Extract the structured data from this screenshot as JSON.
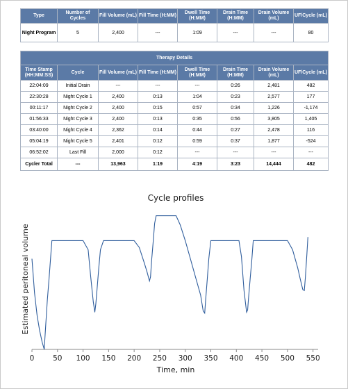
{
  "summary": {
    "headers": [
      "Type",
      "Number of Cycles",
      "Fill Volume (mL)",
      "Fill Time (H:MM)",
      "Dwell Time (H:MM)",
      "Drain Time (H:MM)",
      "Drain Volume (mL)",
      "UF/Cycle (mL)"
    ],
    "row": [
      "Night Program",
      "5",
      "2,400",
      "---",
      "1:09",
      "---",
      "---",
      "80"
    ]
  },
  "therapy": {
    "title": "Therapy Details",
    "headers": [
      "Time Stamp (HH:MM:SS)",
      "Cycle",
      "Fill Volume (mL)",
      "Fill Time (H:MM)",
      "Dwell Time (H:MM)",
      "Drain Time (H:MM)",
      "Drain Volume (mL)",
      "UF/Cycle (mL)"
    ],
    "rows": [
      [
        "22:04:09",
        "Initial Drain",
        "---",
        "---",
        "---",
        "0:26",
        "2,481",
        "482"
      ],
      [
        "22:30:28",
        "Night Cycle 1",
        "2,400",
        "0:13",
        "1:04",
        "0:23",
        "2,577",
        "177"
      ],
      [
        "00:11:17",
        "Night Cycle 2",
        "2,400",
        "0:15",
        "0:57",
        "0:34",
        "1,226",
        "-1,174"
      ],
      [
        "01:56:33",
        "Night Cycle 3",
        "2,400",
        "0:13",
        "0:35",
        "0:56",
        "3,805",
        "1,405"
      ],
      [
        "03:40:00",
        "Night Cycle 4",
        "2,362",
        "0:14",
        "0:44",
        "0:27",
        "2,478",
        "116"
      ],
      [
        "05:04:19",
        "Night Cycle 5",
        "2,401",
        "0:12",
        "0:59",
        "0:37",
        "1,877",
        "-524"
      ],
      [
        "06:52:02",
        "Last Fill",
        "2,000",
        "0:12",
        "---",
        "---",
        "---",
        "---"
      ]
    ],
    "total": [
      "Cycler Total",
      "---",
      "13,963",
      "1:19",
      "4:19",
      "3:23",
      "14,444",
      "482"
    ]
  },
  "chart_data": {
    "type": "line",
    "title": "Cycle profiles",
    "xlabel": "Time, min",
    "ylabel": "Estimated peritoneal volume",
    "xlim": [
      0,
      560
    ],
    "x_ticks": [
      "0",
      "50",
      "100",
      "150",
      "200",
      "250",
      "300",
      "350",
      "400",
      "450",
      "500",
      "550"
    ],
    "y_ticks_shown": false,
    "grid": false,
    "series": [
      {
        "color": "#2f5d9c",
        "x": [
          0,
          5,
          10,
          15,
          20,
          24,
          26,
          28,
          30,
          33,
          36,
          39,
          45,
          50,
          80,
          100,
          110,
          115,
          120,
          123,
          125,
          128,
          131,
          134,
          140,
          150,
          180,
          200,
          210,
          220,
          225,
          230,
          232,
          234,
          237,
          240,
          243,
          250,
          260,
          270,
          282,
          290,
          300,
          310,
          320,
          330,
          335,
          338,
          340,
          343,
          346,
          350,
          360,
          380,
          400,
          405,
          410,
          415,
          420,
          422,
          424,
          427,
          430,
          433,
          440,
          460,
          480,
          500,
          510,
          520,
          525,
          530,
          533,
          535,
          538,
          540
        ],
        "y": [
          2000,
          1250,
          750,
          420,
          160,
          0,
          360,
          720,
          1080,
          1500,
          1950,
          2400,
          2400,
          2400,
          2400,
          2400,
          2200,
          1600,
          1050,
          820,
          1010,
          1420,
          1830,
          2200,
          2400,
          2400,
          2400,
          2400,
          2250,
          1900,
          1720,
          1510,
          1600,
          1950,
          2350,
          2780,
          2950,
          2950,
          2950,
          2950,
          2950,
          2750,
          2400,
          2000,
          1600,
          1200,
          850,
          800,
          1100,
          1550,
          2000,
          2400,
          2400,
          2400,
          2400,
          2400,
          2050,
          1300,
          820,
          870,
          1150,
          1550,
          1950,
          2400,
          2400,
          2400,
          2400,
          2400,
          2200,
          1800,
          1550,
          1320,
          1300,
          1580,
          2100,
          2480
        ]
      }
    ]
  }
}
